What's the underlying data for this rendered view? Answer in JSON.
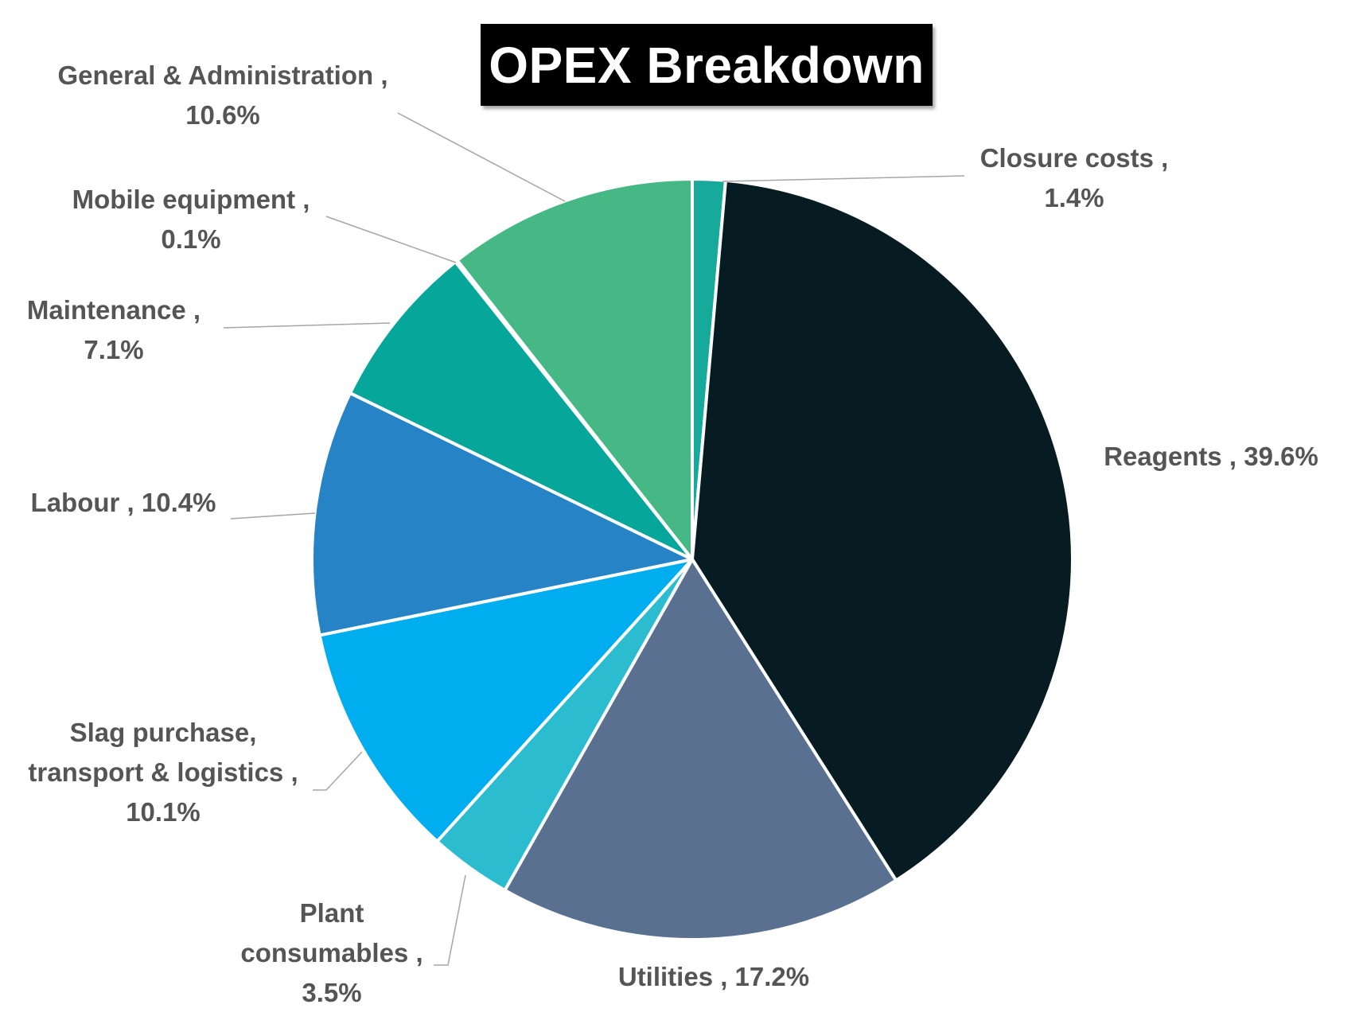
{
  "chart_data": {
    "type": "pie",
    "title": "OPEX Breakdown",
    "start_angle_deg": 0,
    "direction": "clockwise",
    "slices": [
      {
        "label": "Closure costs",
        "value": 1.4,
        "display": "1.4%",
        "color": "#17A99A"
      },
      {
        "label": "Reagents",
        "value": 39.6,
        "display": "39.6%",
        "color": "#061C22"
      },
      {
        "label": "Utilities",
        "value": 17.2,
        "display": "17.2%",
        "color": "#5A7090"
      },
      {
        "label": "Plant consumables",
        "value": 3.5,
        "display": "3.5%",
        "color": "#2CBCCF"
      },
      {
        "label": "Slag purchase, transport & logistics",
        "value": 10.1,
        "display": "10.1%",
        "color": "#00AEEF"
      },
      {
        "label": "Labour",
        "value": 10.4,
        "display": "10.4%",
        "color": "#2683C6"
      },
      {
        "label": "Maintenance",
        "value": 7.1,
        "display": "7.1%",
        "color": "#06A69A"
      },
      {
        "label": "Mobile equipment",
        "value": 0.1,
        "display": "0.1%",
        "color": "#18A896"
      },
      {
        "label": "General & Administration",
        "value": 10.6,
        "display": "10.6%",
        "color": "#45B886"
      }
    ],
    "data_labels": [
      {
        "lines": [
          "Closure costs ,",
          "1.4%"
        ]
      },
      {
        "lines": [
          "Reagents , 39.6%"
        ]
      },
      {
        "lines": [
          "Utilities , 17.2%"
        ]
      },
      {
        "lines": [
          "Plant",
          "consumables ,",
          "3.5%"
        ]
      },
      {
        "lines": [
          "Slag purchase,",
          "transport & logistics ,",
          "10.1%"
        ]
      },
      {
        "lines": [
          "Labour , 10.4%"
        ]
      },
      {
        "lines": [
          "Maintenance ,",
          "7.1%"
        ]
      },
      {
        "lines": [
          "Mobile equipment ,",
          "0.1%"
        ]
      },
      {
        "lines": [
          "General & Administration ,",
          "10.6%"
        ]
      }
    ],
    "legend": "none",
    "label_text_color": "#555555",
    "leader_line_color": "#A6A6A6",
    "slice_border_color": "#FFFFFF"
  }
}
